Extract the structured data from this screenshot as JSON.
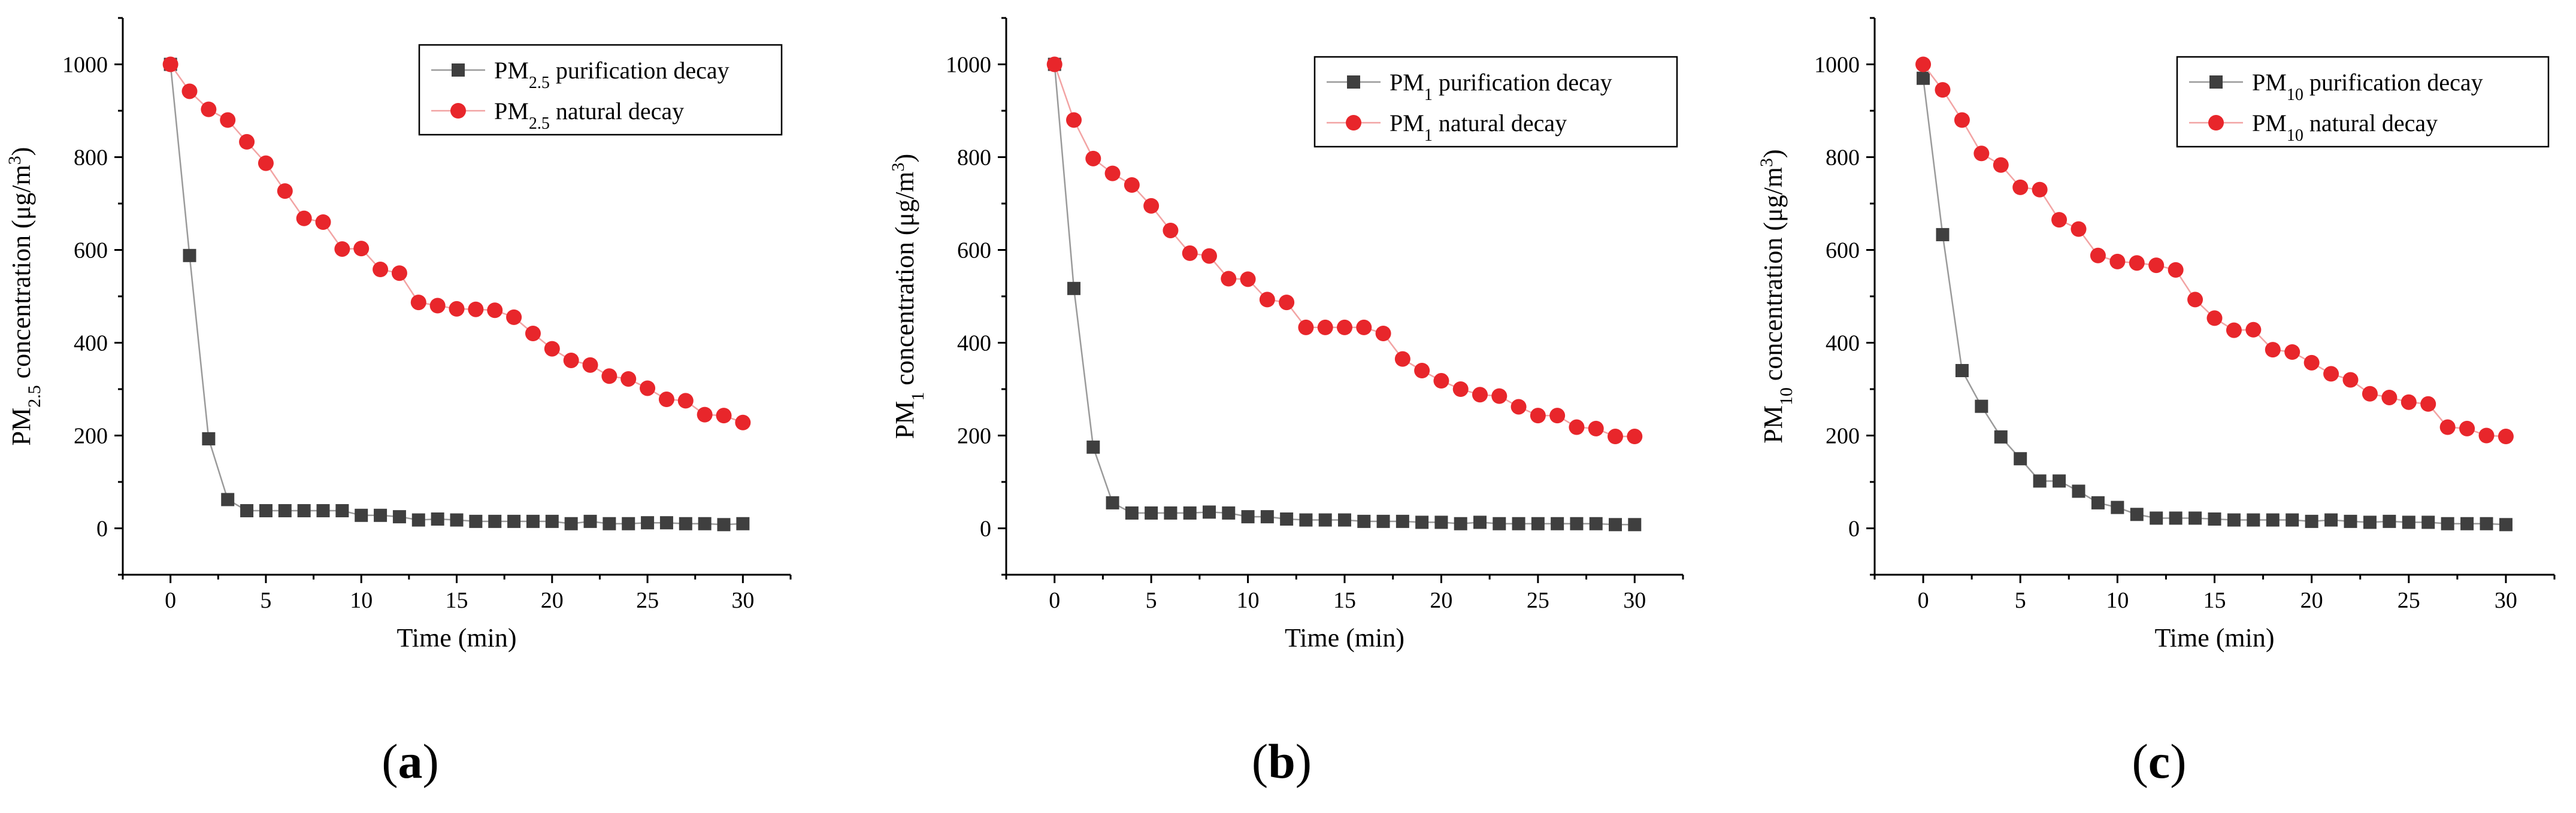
{
  "chart_data": [
    {
      "type": "line",
      "panel_label": "a",
      "xlabel": "Time (min)",
      "ylabel": {
        "pre": "PM",
        "sub": "2.5",
        "mid": " concentration (μg/m",
        "sup": "3",
        "post": ")"
      },
      "xlim": [
        -2.5,
        32.5
      ],
      "ylim": [
        -100,
        1100
      ],
      "xticks": [
        0,
        5,
        10,
        15,
        20,
        25,
        30
      ],
      "yticks": [
        0,
        200,
        400,
        600,
        800,
        1000
      ],
      "x": [
        0,
        1,
        2,
        3,
        4,
        5,
        6,
        7,
        8,
        9,
        10,
        11,
        12,
        13,
        14,
        15,
        16,
        17,
        18,
        19,
        20,
        21,
        22,
        23,
        24,
        25,
        26,
        27,
        28,
        29,
        30
      ],
      "series": [
        {
          "name": "purification",
          "legend": {
            "pre": "PM",
            "sub": "2.5",
            "post": " purification decay"
          },
          "marker": "square",
          "color": "#3f3f3f",
          "line_color": "#9a9a9a",
          "values": [
            1000,
            588,
            193,
            62,
            38,
            38,
            38,
            38,
            38,
            38,
            28,
            28,
            25,
            18,
            20,
            18,
            15,
            15,
            15,
            15,
            15,
            10,
            15,
            10,
            10,
            12,
            12,
            10,
            10,
            8,
            10
          ]
        },
        {
          "name": "natural",
          "legend": {
            "pre": "PM",
            "sub": "2.5",
            "post": " natural decay"
          },
          "marker": "circle",
          "color": "#e8262b",
          "line_color": "#f2a3a3",
          "values": [
            1000,
            942,
            903,
            880,
            833,
            787,
            727,
            668,
            660,
            602,
            603,
            558,
            550,
            487,
            480,
            473,
            472,
            470,
            455,
            420,
            387,
            362,
            352,
            328,
            322,
            302,
            278,
            275,
            245,
            243,
            228
          ]
        }
      ]
    },
    {
      "type": "line",
      "panel_label": "b",
      "xlabel": "Time (min)",
      "ylabel": {
        "pre": "PM",
        "sub": "1",
        "mid": " concentration (μg/m",
        "sup": "3",
        "post": ")"
      },
      "xlim": [
        -2.5,
        32.5
      ],
      "ylim": [
        -100,
        1100
      ],
      "xticks": [
        0,
        5,
        10,
        15,
        20,
        25,
        30
      ],
      "yticks": [
        0,
        200,
        400,
        600,
        800,
        1000
      ],
      "x": [
        0,
        1,
        2,
        3,
        4,
        5,
        6,
        7,
        8,
        9,
        10,
        11,
        12,
        13,
        14,
        15,
        16,
        17,
        18,
        19,
        20,
        21,
        22,
        23,
        24,
        25,
        26,
        27,
        28,
        29,
        30
      ],
      "series": [
        {
          "name": "purification",
          "legend": {
            "pre": "PM",
            "sub": "1",
            "post": " purification decay"
          },
          "marker": "square",
          "color": "#3f3f3f",
          "line_color": "#9a9a9a",
          "values": [
            1000,
            517,
            175,
            55,
            33,
            33,
            33,
            33,
            35,
            33,
            25,
            25,
            20,
            18,
            18,
            18,
            15,
            15,
            15,
            13,
            13,
            10,
            13,
            10,
            10,
            10,
            10,
            10,
            10,
            8,
            8
          ]
        },
        {
          "name": "natural",
          "legend": {
            "pre": "PM",
            "sub": "1",
            "post": " natural decay"
          },
          "marker": "circle",
          "color": "#e8262b",
          "line_color": "#f2a3a3",
          "values": [
            1000,
            880,
            797,
            765,
            740,
            695,
            642,
            593,
            587,
            538,
            537,
            493,
            487,
            433,
            433,
            433,
            433,
            420,
            365,
            340,
            318,
            300,
            288,
            285,
            262,
            243,
            243,
            218,
            215,
            198,
            198
          ]
        }
      ]
    },
    {
      "type": "line",
      "panel_label": "c",
      "xlabel": "Time (min)",
      "ylabel": {
        "pre": "PM",
        "sub": "10",
        "mid": " concentration (μg/m",
        "sup": "3",
        "post": ")"
      },
      "xlim": [
        -2.5,
        32.5
      ],
      "ylim": [
        -100,
        1100
      ],
      "xticks": [
        0,
        5,
        10,
        15,
        20,
        25,
        30
      ],
      "yticks": [
        0,
        200,
        400,
        600,
        800,
        1000
      ],
      "x": [
        0,
        1,
        2,
        3,
        4,
        5,
        6,
        7,
        8,
        9,
        10,
        11,
        12,
        13,
        14,
        15,
        16,
        17,
        18,
        19,
        20,
        21,
        22,
        23,
        24,
        25,
        26,
        27,
        28,
        29,
        30
      ],
      "series": [
        {
          "name": "purification",
          "legend": {
            "pre": "PM",
            "sub": "10",
            "post": " purification decay"
          },
          "marker": "square",
          "color": "#3f3f3f",
          "line_color": "#9a9a9a",
          "values": [
            970,
            633,
            340,
            263,
            197,
            150,
            102,
            102,
            80,
            55,
            45,
            30,
            22,
            22,
            22,
            20,
            18,
            18,
            18,
            18,
            15,
            18,
            15,
            13,
            15,
            13,
            13,
            10,
            10,
            10,
            8
          ]
        },
        {
          "name": "natural",
          "legend": {
            "pre": "PM",
            "sub": "10",
            "post": " natural decay"
          },
          "marker": "circle",
          "color": "#e8262b",
          "line_color": "#f2a3a3",
          "values": [
            1000,
            945,
            880,
            808,
            783,
            735,
            730,
            665,
            645,
            588,
            575,
            572,
            567,
            557,
            493,
            453,
            427,
            428,
            385,
            380,
            357,
            333,
            320,
            290,
            282,
            272,
            268,
            218,
            215,
            200,
            198
          ]
        }
      ]
    }
  ]
}
